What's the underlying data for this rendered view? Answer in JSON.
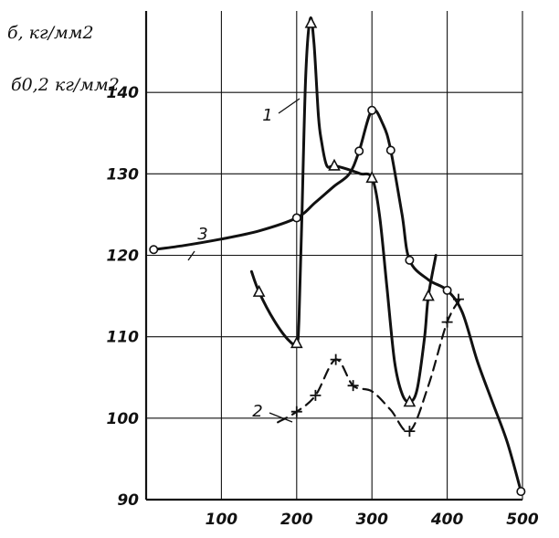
{
  "chart_data": {
    "type": "line",
    "ylabel_1": "б, кг/мм2",
    "ylabel_2": "б0,2 кг/мм2",
    "xlim": [
      0,
      500
    ],
    "ylim": [
      90,
      150
    ],
    "x_ticks": [
      "100",
      "200",
      "300",
      "400",
      "500"
    ],
    "y_ticks": [
      "90",
      "100",
      "110",
      "120",
      "130",
      "140"
    ],
    "grid": true,
    "series": [
      {
        "name": "1",
        "marker": "triangle",
        "line": "solid",
        "points": [
          [
            140,
            118
          ],
          [
            150,
            115.5
          ],
          [
            170,
            112
          ],
          [
            190,
            109.5
          ],
          [
            200,
            109.2
          ],
          [
            203,
            112
          ],
          [
            207,
            125
          ],
          [
            212,
            142
          ],
          [
            218,
            149
          ],
          [
            223,
            146
          ],
          [
            229,
            137
          ],
          [
            233,
            134
          ],
          [
            240,
            131
          ],
          [
            250,
            131
          ],
          [
            270,
            130.5
          ],
          [
            285,
            130
          ],
          [
            300,
            129.5
          ],
          [
            310,
            125
          ],
          [
            320,
            116
          ],
          [
            330,
            107
          ],
          [
            340,
            103
          ],
          [
            350,
            102
          ],
          [
            360,
            103.5
          ],
          [
            370,
            110
          ],
          [
            375,
            115
          ],
          [
            385,
            120
          ]
        ],
        "markers": [
          [
            150,
            115.5
          ],
          [
            200,
            109.2
          ],
          [
            219,
            148.5
          ],
          [
            250,
            131
          ],
          [
            300,
            129.5
          ],
          [
            350,
            102
          ],
          [
            375,
            115
          ]
        ]
      },
      {
        "name": "2",
        "marker": "cross",
        "line": "dashed",
        "points": [
          [
            175,
            99.5
          ],
          [
            200,
            100.8
          ],
          [
            225,
            102.8
          ],
          [
            252,
            107.2
          ],
          [
            275,
            104
          ],
          [
            300,
            103.3
          ],
          [
            325,
            101
          ],
          [
            350,
            98.4
          ],
          [
            375,
            104
          ],
          [
            400,
            111.8
          ],
          [
            420,
            115
          ]
        ],
        "markers": [
          [
            200,
            100.8
          ],
          [
            225,
            102.8
          ],
          [
            252,
            107.2
          ],
          [
            275,
            104
          ],
          [
            350,
            98.4
          ],
          [
            400,
            111.8
          ],
          [
            415,
            114.6
          ]
        ]
      },
      {
        "name": "3",
        "marker": "circle",
        "line": "solid",
        "points": [
          [
            10,
            120.7
          ],
          [
            50,
            121.2
          ],
          [
            100,
            122
          ],
          [
            150,
            123
          ],
          [
            200,
            124.6
          ],
          [
            225,
            126.5
          ],
          [
            250,
            128.5
          ],
          [
            270,
            130
          ],
          [
            283,
            132.8
          ],
          [
            300,
            137.8
          ],
          [
            315,
            136
          ],
          [
            325,
            132.9
          ],
          [
            340,
            125
          ],
          [
            350,
            119.4
          ],
          [
            375,
            117
          ],
          [
            400,
            115.7
          ],
          [
            420,
            113
          ],
          [
            440,
            107
          ],
          [
            460,
            102
          ],
          [
            480,
            97
          ],
          [
            498,
            91
          ]
        ],
        "markers": [
          [
            10,
            120.7
          ],
          [
            200,
            124.6
          ],
          [
            283,
            132.8
          ],
          [
            300,
            137.8
          ],
          [
            325,
            132.9
          ],
          [
            350,
            119.4
          ],
          [
            400,
            115.7
          ],
          [
            498,
            91
          ]
        ]
      }
    ],
    "annotations": [
      {
        "text": "1",
        "series": "1"
      },
      {
        "text": "2",
        "series": "2"
      },
      {
        "text": "3",
        "series": "3"
      }
    ]
  }
}
